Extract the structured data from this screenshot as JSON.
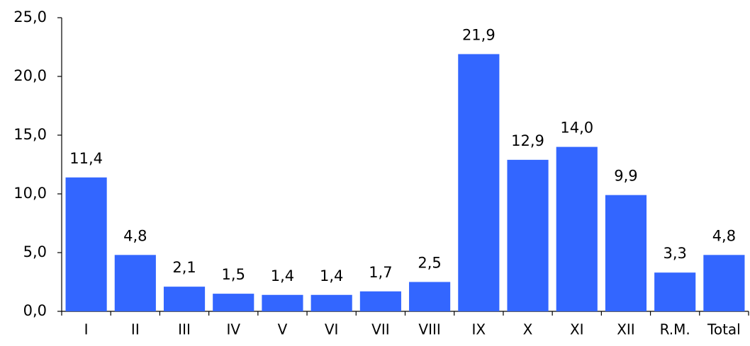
{
  "chart_data": {
    "type": "bar",
    "categories": [
      "I",
      "II",
      "III",
      "IV",
      "V",
      "VI",
      "VII",
      "VIII",
      "IX",
      "X",
      "XI",
      "XII",
      "R.M.",
      "Total"
    ],
    "values": [
      11.4,
      4.8,
      2.1,
      1.5,
      1.4,
      1.4,
      1.7,
      2.5,
      21.9,
      12.9,
      14.0,
      9.9,
      3.3,
      4.8
    ],
    "data_labels": [
      "11,4",
      "4,8",
      "2,1",
      "1,5",
      "1,4",
      "1,4",
      "1,7",
      "2,5",
      "21,9",
      "12,9",
      "14,0",
      "9,9",
      "3,3",
      "4,8"
    ],
    "y_ticks": [
      0,
      5,
      10,
      15,
      20,
      25
    ],
    "y_tick_labels": [
      "0,0",
      "5,0",
      "10,0",
      "15,0",
      "20,0",
      "25,0"
    ],
    "ylim": [
      0,
      25
    ],
    "grid": false,
    "legend": "none",
    "title": "",
    "xlabel": "",
    "ylabel": "",
    "bar_color": "#3366FF"
  }
}
